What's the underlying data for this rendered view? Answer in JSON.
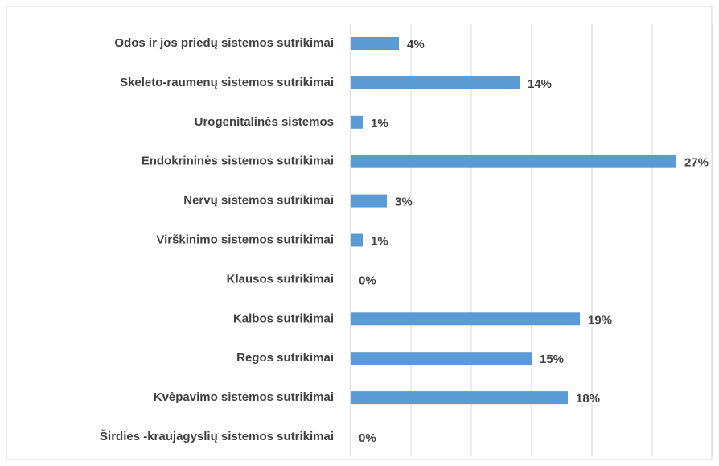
{
  "chart_data": {
    "type": "bar",
    "orientation": "horizontal",
    "categories": [
      "Odos ir jos priedų sistemos sutrikimai",
      "Skeleto-raumenų sistemos sutrikimai",
      "Urogenitalinės sistemos",
      "Endokrininės sistemos sutrikimai",
      "Nervų sistemos sutrikimai",
      "Virškinimo sistemos sutrikimai",
      "Klausos sutrikimai",
      "Kalbos sutrikimai",
      "Regos sutrikimai",
      "Kvėpavimo sistemos sutrikimai",
      "Širdies -kraujagyslių sistemos sutrikimai"
    ],
    "values": [
      4,
      14,
      1,
      27,
      3,
      1,
      0,
      19,
      15,
      18,
      0
    ],
    "value_labels": [
      "4%",
      "14%",
      "1%",
      "27%",
      "3%",
      "1%",
      "0%",
      "19%",
      "15%",
      "18%",
      "0%"
    ],
    "color": "#5b9bd5",
    "xlim": [
      0,
      30
    ],
    "xticks": [
      0,
      5,
      10,
      15,
      20,
      25,
      30
    ],
    "grid": true
  }
}
